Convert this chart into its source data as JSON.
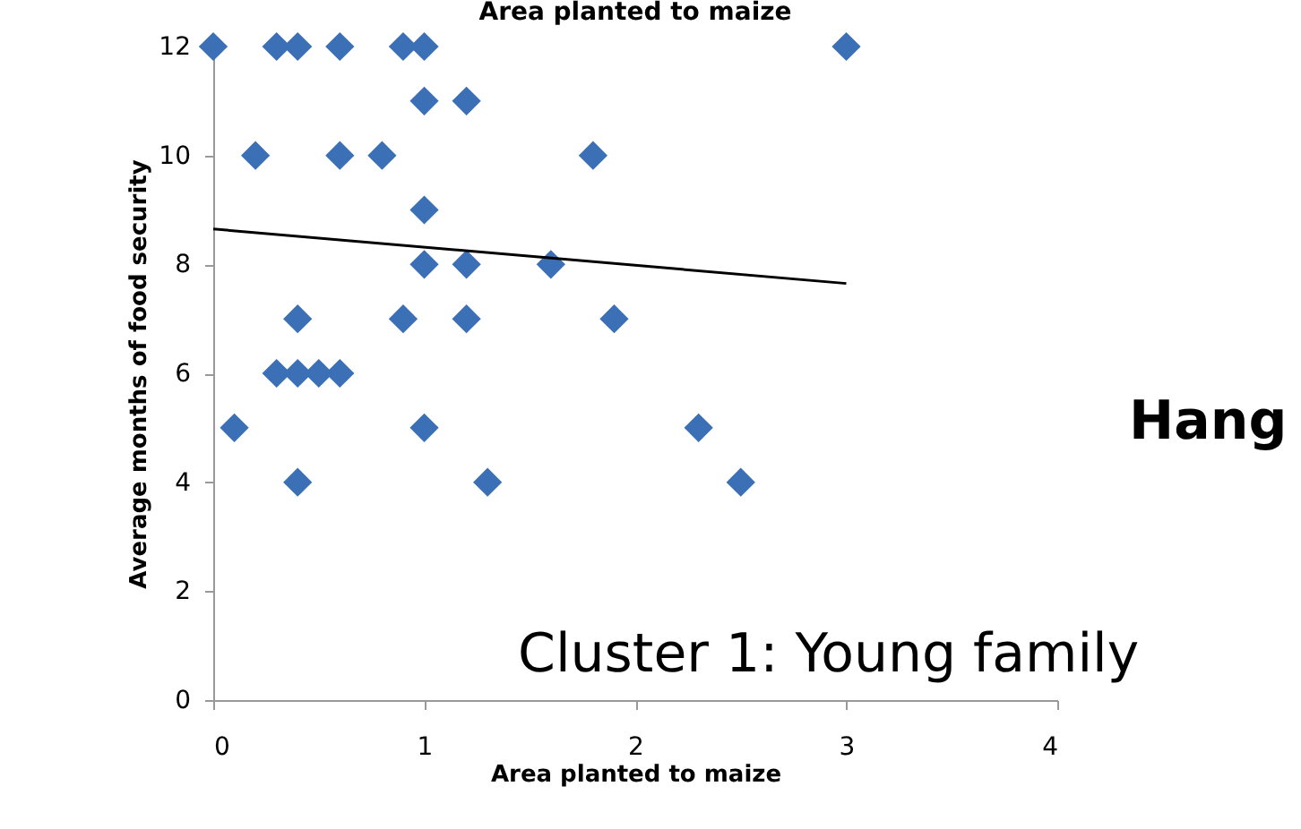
{
  "chart_data": {
    "type": "scatter",
    "title": "Area planted to maize",
    "xlabel": "Area planted to maize",
    "ylabel": "Average months of food security",
    "marker": "diamond",
    "grid": false,
    "xlim": [
      0,
      4
    ],
    "xticks": [
      0,
      1,
      2,
      3,
      4
    ],
    "ylim": [
      0,
      12
    ],
    "yticks": [
      0,
      2,
      4,
      6,
      8,
      10,
      12
    ],
    "series": [
      {
        "color": "#3b6fb6",
        "x": [
          0,
          0.3,
          0.4,
          0.6,
          0.9,
          1.0,
          3.0,
          1.0,
          1.2,
          0.2,
          0.6,
          0.8,
          1.8,
          1.0,
          1.0,
          1.2,
          1.6,
          0.4,
          0.9,
          1.2,
          1.9,
          0.3,
          0.4,
          0.5,
          0.6,
          0.1,
          1.0,
          2.3,
          0.4,
          1.3,
          2.5
        ],
        "values": [
          12,
          12,
          12,
          12,
          12,
          12,
          12,
          11,
          11,
          10,
          10,
          10,
          10,
          9,
          8,
          8,
          8,
          7,
          7,
          7,
          7,
          6,
          6,
          6,
          6,
          5,
          5,
          5,
          4,
          4,
          4
        ]
      },
      {
        "type": "line",
        "color": "#000000",
        "x": [
          0,
          3
        ],
        "values": [
          8.65,
          7.65
        ],
        "marker": "none"
      }
    ],
    "annotations": [
      "Hang",
      "Cluster 1: Young family"
    ]
  }
}
